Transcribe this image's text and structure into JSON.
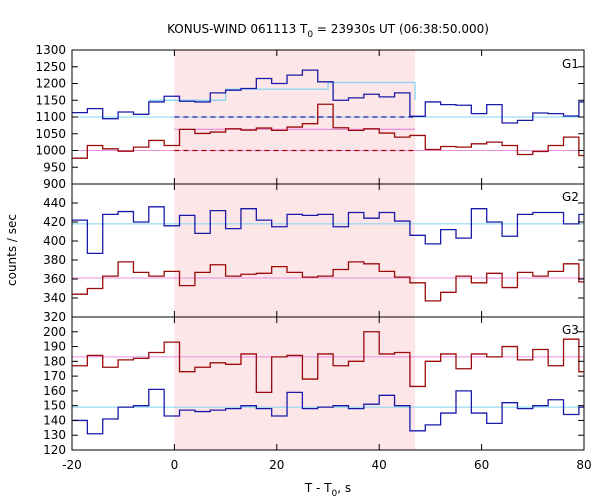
{
  "chart_data": {
    "type": "line",
    "title_main": "KONUS-WIND 061113 T",
    "title_sub": "0",
    "title_rest": " = 23930s UT (06:38:50.000)",
    "xlabel_main": "T - T",
    "xlabel_sub": "0",
    "xlabel_rest": ", s",
    "ylabel": "counts / sec",
    "xlim": [
      -20,
      80
    ],
    "xticks": [
      "-20",
      "0",
      "20",
      "40",
      "60",
      "80"
    ],
    "shaded_interval": [
      0,
      47
    ],
    "colors": {
      "blue": "#1a1aa8",
      "red": "#9b0a0a",
      "blue_bg": "#7fd4f0",
      "pink_bg": "#e890e0",
      "shade": "#fde6e8"
    },
    "panels": [
      {
        "label": "G1",
        "ylim": [
          900,
          1300
        ],
        "yticks": [
          "900",
          "950",
          "1000",
          "1050",
          "1100",
          "1150",
          "1200",
          "1250",
          "1300"
        ],
        "series": [
          {
            "color_key": "blue",
            "x": [
              -20,
              -17,
              -14,
              -11,
              -8,
              -5,
              -2,
              1,
              4,
              7,
              10,
              13,
              16,
              19,
              22,
              25,
              28,
              31,
              34,
              37,
              40,
              43,
              46,
              49,
              52,
              55,
              58,
              61,
              64,
              67,
              70,
              73,
              76,
              79,
              80
            ],
            "y": [
              1113,
              1125,
              1095,
              1115,
              1108,
              1145,
              1162,
              1147,
              1145,
              1172,
              1180,
              1185,
              1215,
              1200,
              1225,
              1240,
              1205,
              1150,
              1157,
              1168,
              1160,
              1172,
              1102,
              1145,
              1137,
              1135,
              1110,
              1137,
              1082,
              1090,
              1112,
              1110,
              1103,
              1145,
              1145
            ]
          },
          {
            "color_key": "red",
            "x": [
              -20,
              -17,
              -14,
              -11,
              -8,
              -5,
              -2,
              1,
              4,
              7,
              10,
              13,
              16,
              19,
              22,
              25,
              28,
              31,
              34,
              37,
              40,
              43,
              46,
              49,
              52,
              55,
              58,
              61,
              64,
              67,
              70,
              73,
              76,
              79,
              80
            ],
            "y": [
              977,
              1015,
              1005,
              998,
              1010,
              1030,
              1015,
              1063,
              1051,
              1055,
              1065,
              1061,
              1067,
              1060,
              1070,
              1080,
              1138,
              1068,
              1060,
              1065,
              1052,
              1040,
              1045,
              1003,
              1012,
              1010,
              1020,
              1025,
              1015,
              988,
              997,
              1015,
              1040,
              985,
              985
            ]
          }
        ],
        "background_fits": [
          {
            "color_key": "blue_bg",
            "value": 1100
          },
          {
            "color_key": "pink_bg",
            "value": 1000
          }
        ],
        "source_fits": [
          {
            "color_key": "blue_bg",
            "x": [
              -5,
              10,
              30,
              47
            ],
            "y": [
              1150,
              1183,
              1203,
              1150
            ]
          },
          {
            "color_key": "pink_bg",
            "x": [
              0,
              47
            ],
            "y": [
              1063,
              1063
            ]
          }
        ],
        "dashed_levels": [
          {
            "color_key": "blue",
            "value": 1100,
            "x": [
              0,
              47
            ]
          },
          {
            "color_key": "red",
            "value": 1000,
            "x": [
              0,
              47
            ]
          }
        ]
      },
      {
        "label": "G2",
        "ylim": [
          320,
          460
        ],
        "yticks": [
          "320",
          "340",
          "360",
          "380",
          "400",
          "420",
          "440"
        ],
        "series": [
          {
            "color_key": "blue",
            "x": [
              -20,
              -17,
              -14,
              -11,
              -8,
              -5,
              -2,
              1,
              4,
              7,
              10,
              13,
              16,
              19,
              22,
              25,
              28,
              31,
              34,
              37,
              40,
              43,
              46,
              49,
              52,
              55,
              58,
              61,
              64,
              67,
              70,
              73,
              76,
              79,
              80
            ],
            "y": [
              422,
              387,
              428,
              431,
              420,
              436,
              416,
              427,
              408,
              432,
              413,
              434,
              422,
              415,
              428,
              427,
              428,
              415,
              430,
              424,
              430,
              421,
              406,
              397,
              412,
              403,
              434,
              420,
              405,
              428,
              430,
              430,
              418,
              428,
              413
            ]
          },
          {
            "color_key": "red",
            "x": [
              -20,
              -17,
              -14,
              -11,
              -8,
              -5,
              -2,
              1,
              4,
              7,
              10,
              13,
              16,
              19,
              22,
              25,
              28,
              31,
              34,
              37,
              40,
              43,
              46,
              49,
              52,
              55,
              58,
              61,
              64,
              67,
              70,
              73,
              76,
              79,
              80
            ],
            "y": [
              344,
              350,
              363,
              378,
              367,
              363,
              368,
              353,
              367,
              375,
              363,
              365,
              366,
              373,
              367,
              362,
              363,
              370,
              378,
              376,
              368,
              362,
              356,
              337,
              346,
              363,
              356,
              366,
              351,
              367,
              363,
              368,
              376,
              357,
              340
            ]
          }
        ],
        "background_fits": [
          {
            "color_key": "blue_bg",
            "value": 418
          },
          {
            "color_key": "pink_bg",
            "value": 361
          }
        ],
        "source_fits": [],
        "dashed_levels": []
      },
      {
        "label": "G3",
        "ylim": [
          120,
          210
        ],
        "yticks": [
          "120",
          "130",
          "140",
          "150",
          "160",
          "170",
          "180",
          "190",
          "200"
        ],
        "series": [
          {
            "color_key": "blue",
            "x": [
              -20,
              -17,
              -14,
              -11,
              -8,
              -5,
              -2,
              1,
              4,
              7,
              10,
              13,
              16,
              19,
              22,
              25,
              28,
              31,
              34,
              37,
              40,
              43,
              46,
              49,
              52,
              55,
              58,
              61,
              64,
              67,
              70,
              73,
              76,
              79,
              80
            ],
            "y": [
              140,
              131,
              141,
              149,
              150,
              161,
              143,
              147,
              146,
              147,
              148,
              150,
              148,
              143,
              159,
              148,
              149,
              150,
              148,
              151,
              157,
              150,
              133,
              137,
              145,
              160,
              145,
              138,
              152,
              148,
              150,
              154,
              144,
              149,
              149
            ]
          },
          {
            "color_key": "red",
            "x": [
              -20,
              -17,
              -14,
              -11,
              -8,
              -5,
              -2,
              1,
              4,
              7,
              10,
              13,
              16,
              19,
              22,
              25,
              28,
              31,
              34,
              37,
              40,
              43,
              46,
              49,
              52,
              55,
              58,
              61,
              64,
              67,
              70,
              73,
              76,
              79,
              80
            ],
            "y": [
              177,
              184,
              176,
              181,
              182,
              186,
              193,
              173,
              176,
              179,
              178,
              185,
              159,
              183,
              184,
              168,
              185,
              177,
              180,
              200,
              185,
              186,
              163,
              180,
              185,
              175,
              185,
              183,
              190,
              181,
              188,
              177,
              195,
              173,
              173
            ]
          }
        ],
        "background_fits": [
          {
            "color_key": "blue_bg",
            "value": 149
          },
          {
            "color_key": "pink_bg",
            "value": 183
          }
        ],
        "source_fits": [],
        "dashed_levels": []
      }
    ]
  }
}
